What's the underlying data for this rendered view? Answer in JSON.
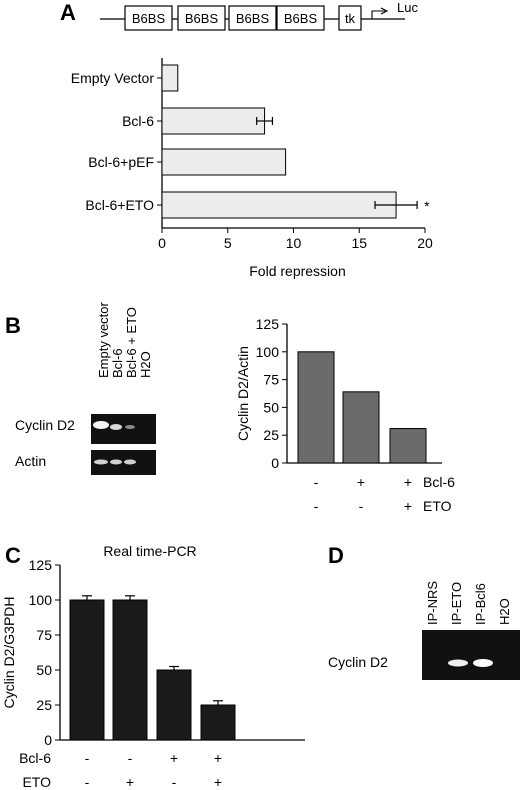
{
  "panels": {
    "A": {
      "letter": "A",
      "construct": {
        "boxes": [
          "B6BS",
          "B6BS",
          "B6BS",
          "B6BS"
        ],
        "promoter": "tk",
        "reporter": "Luc"
      }
    },
    "B": {
      "letter": "B",
      "gel": {
        "lanes": [
          "Empty vector",
          "Bcl-6",
          "Bcl-6 + ETO",
          "H2O"
        ],
        "rows": [
          "Cyclin D2",
          "Actin"
        ]
      }
    },
    "C": {
      "letter": "C"
    },
    "D": {
      "letter": "D",
      "gel": {
        "lanes": [
          "IP-NRS",
          "IP-ETO",
          "IP-Bcl6",
          "H2O"
        ],
        "rows": [
          "Cyclin D2"
        ]
      }
    }
  },
  "chart_data": [
    {
      "id": "A",
      "type": "bar",
      "orientation": "horizontal",
      "categories": [
        "Empty Vector",
        "Bcl-6",
        "Bcl-6+pEF",
        "Bcl-6+ETO"
      ],
      "values": [
        1.2,
        7.8,
        9.4,
        17.8
      ],
      "errors": [
        0,
        0.6,
        0,
        1.6
      ],
      "annotations": [
        "",
        "",
        "",
        "*"
      ],
      "xlabel": "Fold repression",
      "xlim": [
        0,
        20
      ],
      "xticks": [
        "0",
        "5",
        "10",
        "15",
        "20"
      ],
      "bar_color": "#ececec"
    },
    {
      "id": "B",
      "type": "bar",
      "categories": [
        "",
        "",
        ""
      ],
      "values": [
        100,
        64,
        31
      ],
      "ylabel": "Cyclin D2/Actin",
      "ylim": [
        0,
        125
      ],
      "yticks": [
        "0",
        "25",
        "50",
        "75",
        "100",
        "125"
      ],
      "conditions": [
        {
          "name": "Bcl-6",
          "values": [
            "-",
            "+",
            "+"
          ]
        },
        {
          "name": "ETO",
          "values": [
            "-",
            "-",
            "+"
          ]
        }
      ],
      "bar_color": "#6b6b6b"
    },
    {
      "id": "C",
      "type": "bar",
      "title": "Real time-PCR",
      "categories": [
        "",
        "",
        "",
        ""
      ],
      "values": [
        100,
        100,
        50,
        25
      ],
      "errors": [
        3,
        3,
        2.5,
        3
      ],
      "ylabel": "Cyclin D2/G3PDH",
      "ylim": [
        0,
        125
      ],
      "yticks": [
        "0",
        "25",
        "50",
        "75",
        "100",
        "125"
      ],
      "conditions": [
        {
          "name": "Bcl-6",
          "values": [
            "-",
            "-",
            "+",
            "+"
          ]
        },
        {
          "name": "ETO",
          "values": [
            "-",
            "+",
            "-",
            "+"
          ]
        }
      ],
      "bar_color": "#1a1a1a"
    }
  ]
}
